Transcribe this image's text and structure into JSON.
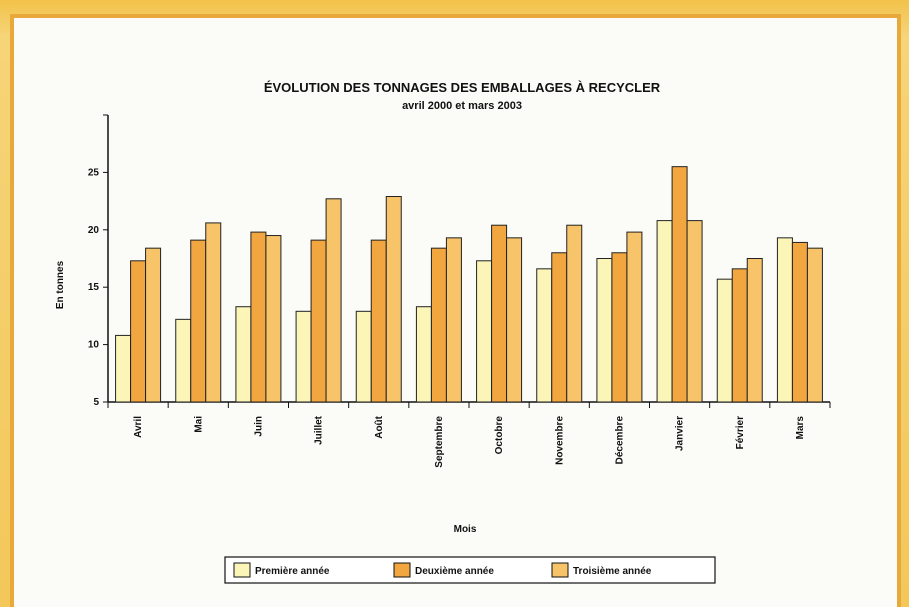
{
  "chart_data": {
    "type": "bar",
    "title": "ÉVOLUTION DES TONNAGES DES EMBALLAGES À RECYCLER",
    "subtitle": "avril 2000 et mars 2003",
    "xlabel": "Mois",
    "ylabel": "En tonnes",
    "ylim": [
      5,
      30
    ],
    "yticks": [
      5,
      10,
      15,
      20,
      25
    ],
    "grid": false,
    "legend_position": "bottom",
    "categories": [
      "Avril",
      "Mai",
      "Juin",
      "Juillet",
      "Août",
      "Septembre",
      "Octobre",
      "Novembre",
      "Décembre",
      "Janvier",
      "Février",
      "Mars"
    ],
    "series": [
      {
        "name": "Première année",
        "color": "#fbf5b8",
        "values": [
          10.8,
          12.2,
          13.3,
          12.9,
          12.9,
          13.3,
          17.3,
          16.6,
          17.5,
          20.8,
          15.7,
          19.3
        ]
      },
      {
        "name": "Deuxième année",
        "color": "#f2a640",
        "values": [
          17.3,
          19.1,
          19.8,
          19.1,
          19.1,
          18.4,
          20.4,
          18.0,
          18.0,
          25.5,
          16.6,
          18.9
        ]
      },
      {
        "name": "Troisième année",
        "color": "#f7c46a",
        "values": [
          18.4,
          20.6,
          19.5,
          22.7,
          22.9,
          19.3,
          19.3,
          20.4,
          19.8,
          20.8,
          17.5,
          18.4
        ]
      }
    ]
  }
}
